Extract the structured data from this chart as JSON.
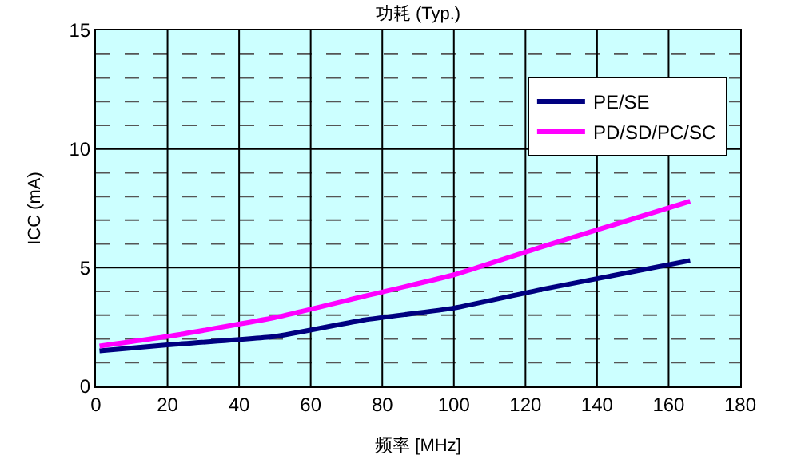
{
  "chart_data": {
    "type": "line",
    "title": "功耗 (Typ.)",
    "xlabel": "频率 [MHz]",
    "ylabel": "ICC (mA)",
    "xlim": [
      0,
      180
    ],
    "xticks": [
      0,
      20,
      40,
      60,
      80,
      100,
      120,
      140,
      160,
      180
    ],
    "ylim": [
      0,
      15
    ],
    "yticks": [
      0,
      {
        "value": 1,
        "label": null
      },
      {
        "value": 2,
        "label": null
      },
      {
        "value": 3,
        "label": null
      },
      {
        "value": 4,
        "label": null
      },
      5,
      {
        "value": 6,
        "label": null
      },
      {
        "value": 7,
        "label": null
      },
      {
        "value": 8,
        "label": null
      },
      {
        "value": 9,
        "label": null
      },
      10,
      {
        "value": 11,
        "label": null
      },
      {
        "value": 12,
        "label": null
      },
      {
        "value": 13,
        "label": null
      },
      {
        "value": 14,
        "label": null
      },
      15
    ],
    "grid": true,
    "legend": "top right",
    "marker": "none",
    "line_style": "solid",
    "series": [
      {
        "name": "PE/SE",
        "color": "#000080",
        "x": [
          1,
          20,
          50,
          75,
          100,
          125,
          166
        ],
        "values": [
          1.5,
          1.75,
          2.1,
          2.8,
          3.3,
          4.1,
          5.3
        ]
      },
      {
        "name": "PD/SD/PC/SC",
        "color": "#ff00ff",
        "x": [
          1,
          20,
          50,
          75,
          100,
          125,
          166
        ],
        "values": [
          1.7,
          2.1,
          2.9,
          3.8,
          4.7,
          5.9,
          7.8
        ]
      }
    ]
  }
}
